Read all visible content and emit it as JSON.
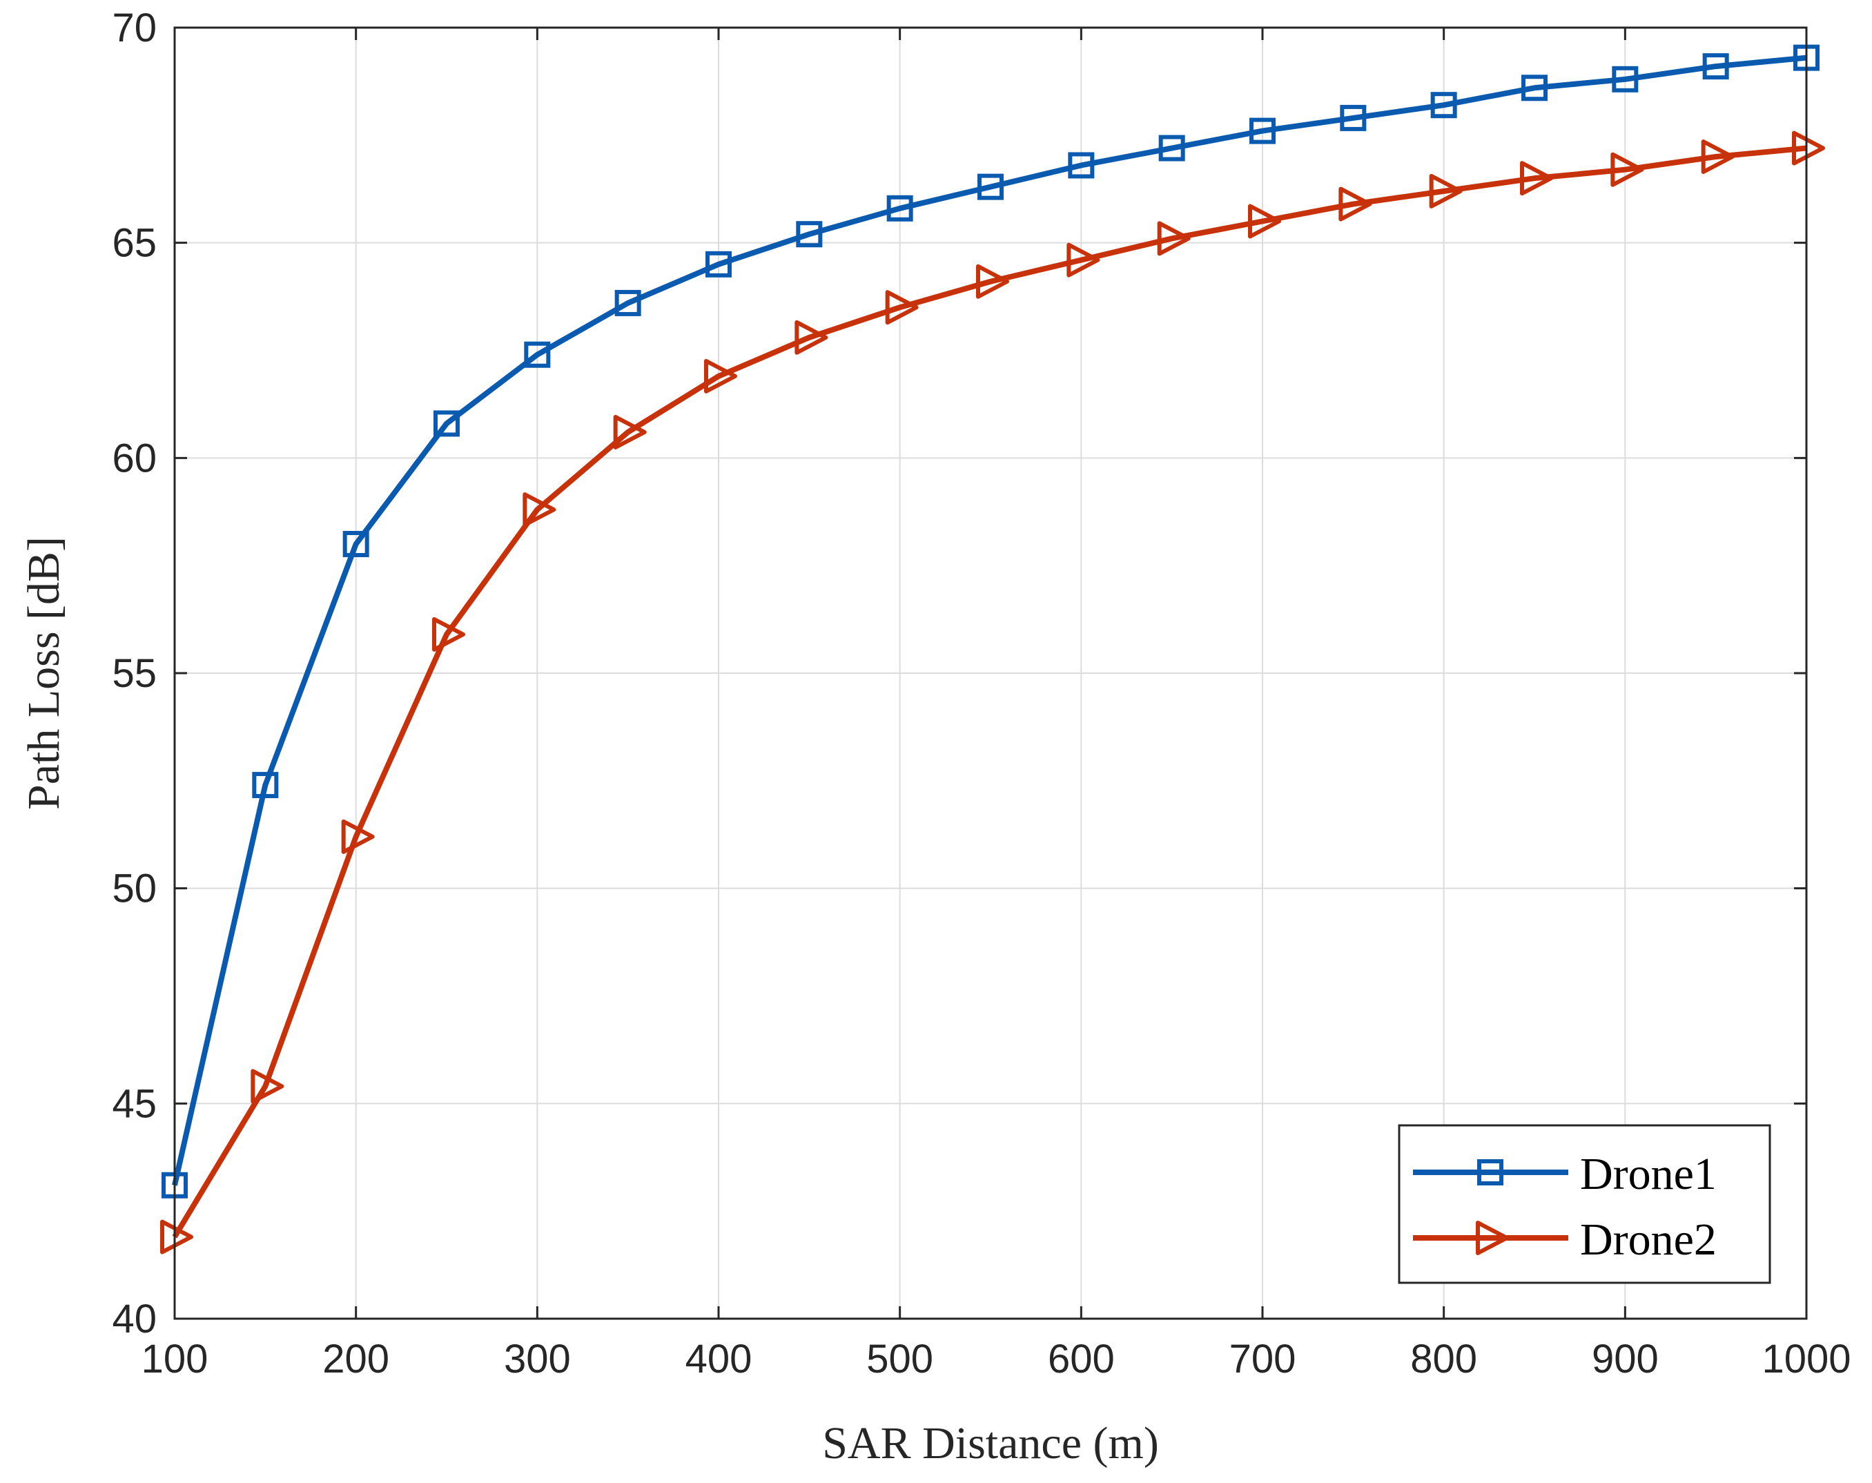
{
  "chart_data": {
    "type": "line",
    "xlabel": "SAR Distance (m)",
    "ylabel": "Path Loss [dB]",
    "xlim": [
      100,
      1000
    ],
    "ylim": [
      40,
      70
    ],
    "xticks": [
      100,
      200,
      300,
      400,
      500,
      600,
      700,
      800,
      900,
      1000
    ],
    "yticks": [
      40,
      45,
      50,
      55,
      60,
      65,
      70
    ],
    "grid": true,
    "legend_position": "bottom-right",
    "x": [
      100,
      150,
      200,
      250,
      300,
      350,
      400,
      450,
      500,
      550,
      600,
      650,
      700,
      750,
      800,
      850,
      900,
      950,
      1000
    ],
    "series": [
      {
        "name": "Drone1",
        "color": "#0a5ab0",
        "marker": "square",
        "values": [
          43.1,
          52.4,
          58.0,
          60.8,
          62.4,
          63.6,
          64.5,
          65.2,
          65.8,
          66.3,
          66.8,
          67.2,
          67.6,
          67.9,
          68.2,
          68.6,
          68.8,
          69.1,
          69.3
        ]
      },
      {
        "name": "Drone2",
        "color": "#c8320a",
        "marker": "triangle-right",
        "values": [
          41.9,
          45.4,
          51.2,
          55.9,
          58.8,
          60.6,
          61.9,
          62.8,
          63.5,
          64.1,
          64.6,
          65.1,
          65.5,
          65.9,
          66.2,
          66.5,
          66.7,
          67.0,
          67.2
        ]
      }
    ]
  }
}
